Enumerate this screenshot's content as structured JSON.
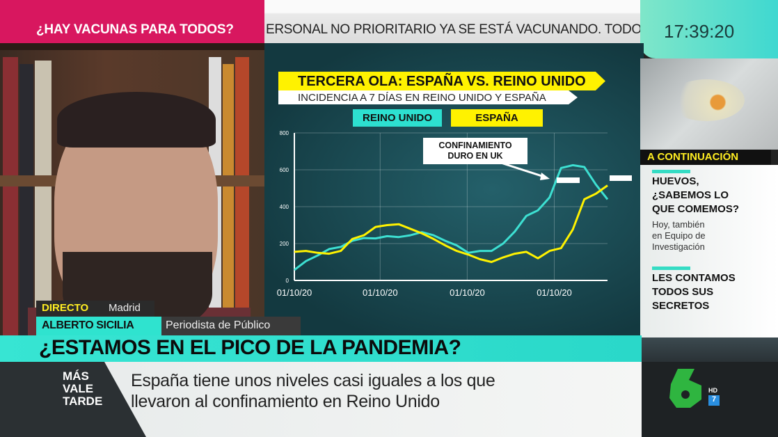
{
  "top_bar": {
    "topic": "¿HAY VACUNAS PARA TODOS?",
    "ticker": "ERSONAL NO PRIORITARIO YA SE ESTÁ VACUNANDO. TODOS LO",
    "clock": "17:39:20"
  },
  "colors": {
    "pink": "#d8175f",
    "teal": "#2fe3cf",
    "yellow": "#fff200",
    "uk_line": "#3de0d2",
    "spain_line": "#fff200"
  },
  "chart_data": {
    "type": "line",
    "title": "TERCERA OLA: ESPAÑA VS. REINO UNIDO",
    "subtitle": "INCIDENCIA A 7 DÍAS EN REINO UNIDO Y ESPAÑA",
    "legend_placement": "top",
    "ylim": [
      0,
      800
    ],
    "y_ticks": [
      "0",
      "200",
      "400",
      "600",
      "800"
    ],
    "x_tick_labels": [
      "01/10/20",
      "01/10/20",
      "01/10/20",
      "01/10/20"
    ],
    "grid": true,
    "series": [
      {
        "name": "REINO UNIDO",
        "color": "#3de0d2",
        "values": [
          57,
          105,
          135,
          170,
          182,
          215,
          230,
          228,
          240,
          235,
          245,
          262,
          245,
          215,
          190,
          150,
          160,
          160,
          200,
          265,
          350,
          380,
          450,
          610,
          625,
          615,
          520,
          440
        ]
      },
      {
        "name": "ESPAÑA",
        "color": "#fff200",
        "values": [
          155,
          160,
          150,
          145,
          160,
          225,
          245,
          290,
          300,
          305,
          280,
          255,
          225,
          190,
          160,
          140,
          115,
          100,
          125,
          145,
          155,
          120,
          160,
          175,
          275,
          440,
          470,
          515
        ]
      }
    ],
    "annotation": "CONFINAMIENTO DURO EN UK"
  },
  "annotation_lines": [
    "CONFINAMIENTO",
    "DURO EN UK"
  ],
  "next_up": {
    "label": "A CONTINUACIÓN",
    "items": [
      {
        "title": [
          "HUEVOS,",
          "¿SABEMOS LO",
          "QUE COMEMOS?"
        ],
        "sub": [
          "Hoy, también",
          "en Equipo de",
          "Investigación"
        ]
      },
      {
        "title": [
          "LES CONTAMOS",
          "TODOS SUS",
          "SECRETOS"
        ]
      }
    ]
  },
  "lower_third": {
    "live": "DIRECTO",
    "location": "Madrid",
    "name": "ALBERTO SICILIA",
    "role": "Periodista de Público",
    "headline": "¿ESTAMOS EN EL PICO DE LA PANDEMIA?",
    "subtitle_lines": [
      "España tiene unos niveles casi iguales a los que",
      "llevaron al confinamiento en Reino Unido"
    ]
  },
  "show_logo": [
    "MÁS",
    "VALE",
    "TARDE"
  ],
  "channel": {
    "name": "laSexta",
    "hd": "HD",
    "rating": "7"
  }
}
